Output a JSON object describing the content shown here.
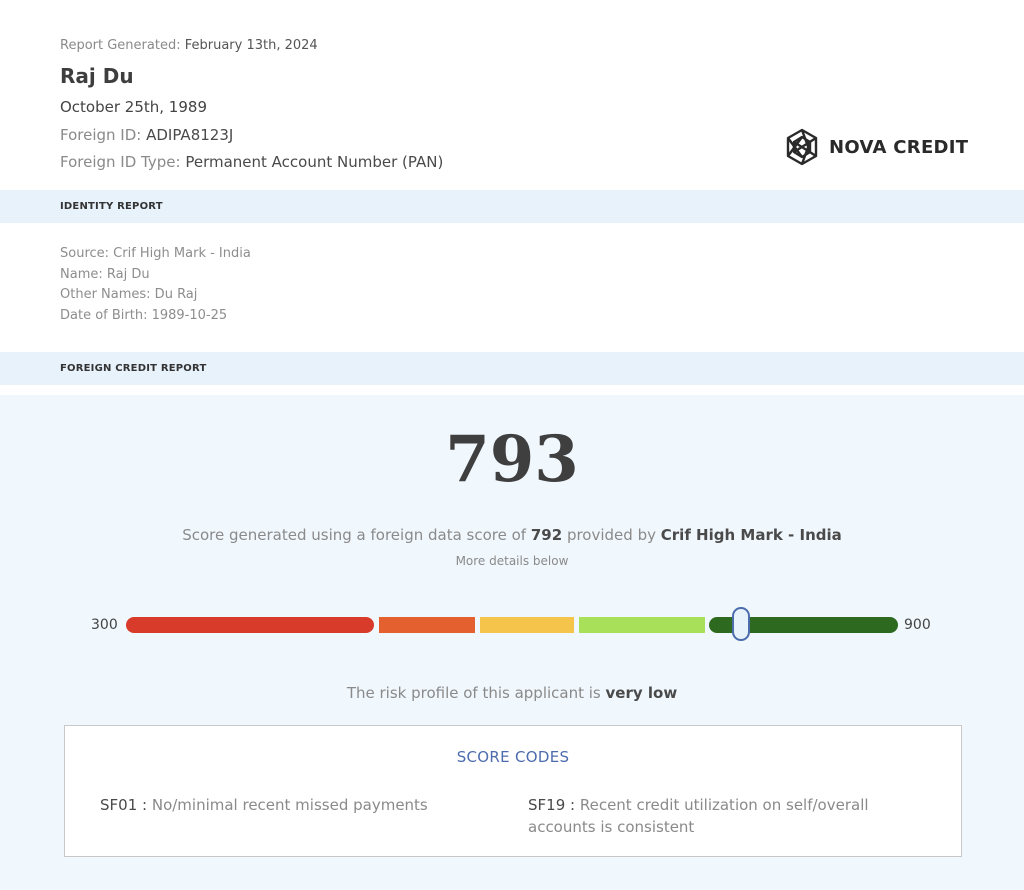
{
  "header": {
    "generated_label": "Report Generated:",
    "generated_date": "February 13th, 2024",
    "name": "Raj Du",
    "dob": "October 25th, 1989",
    "foreign_id_label": "Foreign ID:",
    "foreign_id": "ADIPA8123J",
    "foreign_id_type_label": "Foreign ID Type:",
    "foreign_id_type": "Permanent Account Number (PAN)",
    "logo_text": "NOVA CREDIT",
    "logo_icon": "nova-hex-logo-icon"
  },
  "identity": {
    "title": "IDENTITY REPORT",
    "source": "Source: Crif High Mark - India",
    "name": "Name: Raj Du",
    "other_names": "Other Names: Du Raj",
    "dob": "Date of Birth: 1989-10-25"
  },
  "credit": {
    "title": "FOREIGN CREDIT REPORT",
    "score": "793",
    "score_value": 793,
    "gen_prefix": "Score generated using a foreign data score of",
    "foreign_score": "792",
    "gen_mid": "provided by",
    "provider": "Crif High Mark - India",
    "more": "More details below",
    "min_label": "300",
    "max_label": "900",
    "min": 300,
    "max": 900,
    "segment_colors": [
      "#d93b2b",
      "#e4612f",
      "#f4c54a",
      "#a8e05a",
      "#2d6a1f"
    ],
    "risk_prefix": "The risk profile of this applicant is",
    "risk_level": "very low"
  },
  "score_codes": {
    "title": "SCORE CODES",
    "items": [
      {
        "code": "SF01 :",
        "desc": "No/minimal recent missed payments"
      },
      {
        "code": "SF19 :",
        "desc": "Recent credit utilization on self/overall accounts is consistent"
      }
    ]
  }
}
